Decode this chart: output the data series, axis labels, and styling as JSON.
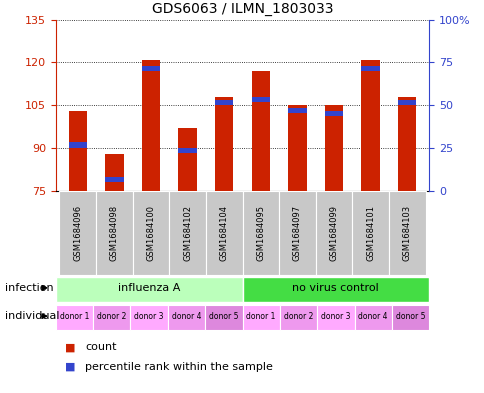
{
  "title": "GDS6063 / ILMN_1803033",
  "samples": [
    "GSM1684096",
    "GSM1684098",
    "GSM1684100",
    "GSM1684102",
    "GSM1684104",
    "GSM1684095",
    "GSM1684097",
    "GSM1684099",
    "GSM1684101",
    "GSM1684103"
  ],
  "bar_tops": [
    103,
    88,
    121,
    97,
    108,
    117,
    105,
    105,
    121,
    108
  ],
  "blue_markers": [
    91,
    79,
    118,
    89,
    106,
    107,
    103,
    102,
    118,
    106
  ],
  "bar_bottom": 75,
  "ylim": [
    75,
    135
  ],
  "yticks": [
    75,
    90,
    105,
    120,
    135
  ],
  "right_ytick_vals": [
    0,
    25,
    50,
    75,
    100
  ],
  "right_ytick_labels": [
    "0",
    "25",
    "50",
    "75",
    "100%"
  ],
  "bar_color": "#cc2200",
  "blue_color": "#3344cc",
  "tick_color_left": "#cc2200",
  "tick_color_right": "#3344cc",
  "infection_groups": [
    {
      "label": "influenza A",
      "start": 0,
      "end": 5,
      "color": "#bbffbb"
    },
    {
      "label": "no virus control",
      "start": 5,
      "end": 10,
      "color": "#44dd44"
    }
  ],
  "individual_labels": [
    "donor 1",
    "donor 2",
    "donor 3",
    "donor 4",
    "donor 5",
    "donor 1",
    "donor 2",
    "donor 3",
    "donor 4",
    "donor 5"
  ],
  "individual_colors": [
    "#ffaaff",
    "#ee99ee",
    "#ffaaff",
    "#ee99ee",
    "#dd88dd",
    "#ffaaff",
    "#ee99ee",
    "#ffaaff",
    "#ee99ee",
    "#dd88dd"
  ],
  "xtick_bg": "#c8c8c8",
  "bar_width": 0.5,
  "legend_count": "count",
  "legend_percentile": "percentile rank within the sample"
}
